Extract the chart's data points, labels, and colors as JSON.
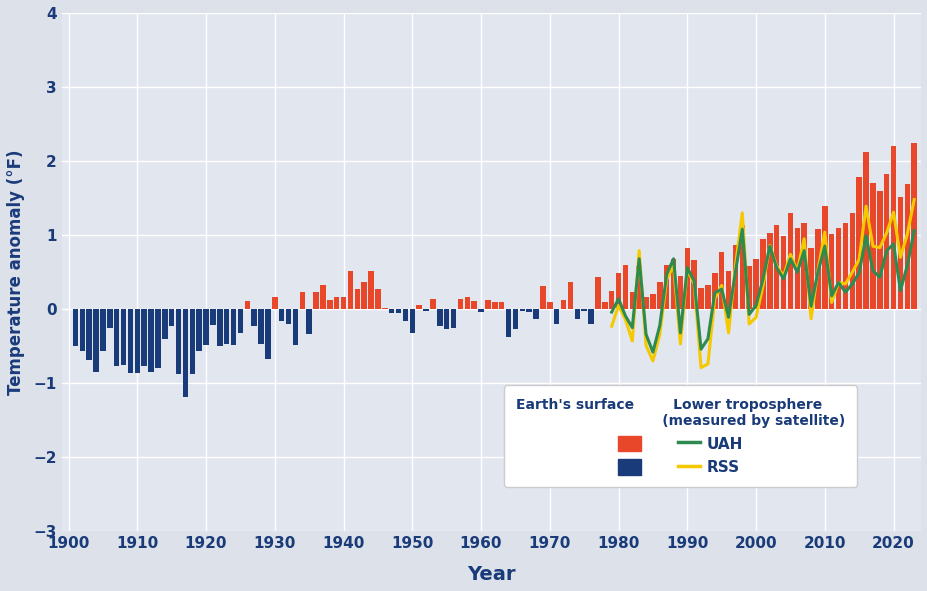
{
  "ylabel": "Temperature anomaly (°F)",
  "xlabel": "Year",
  "bg_color": "#dde1ea",
  "plot_bg_color": "#e2e6ef",
  "ylim": [
    -3,
    4
  ],
  "yticks": [
    -3,
    -2,
    -1,
    0,
    1,
    2,
    3,
    4
  ],
  "xlim": [
    1899,
    2024
  ],
  "bar_color_pos": "#e8472a",
  "bar_color_neg": "#1a3b7a",
  "uah_color": "#2e8b50",
  "rss_color": "#f5c800",
  "surface_years": [
    1901,
    1902,
    1903,
    1904,
    1905,
    1906,
    1907,
    1908,
    1909,
    1910,
    1911,
    1912,
    1913,
    1914,
    1915,
    1916,
    1917,
    1918,
    1919,
    1920,
    1921,
    1922,
    1923,
    1924,
    1925,
    1926,
    1927,
    1928,
    1929,
    1930,
    1931,
    1932,
    1933,
    1934,
    1935,
    1936,
    1937,
    1938,
    1939,
    1940,
    1941,
    1942,
    1943,
    1944,
    1945,
    1946,
    1947,
    1948,
    1949,
    1950,
    1951,
    1952,
    1953,
    1954,
    1955,
    1956,
    1957,
    1958,
    1959,
    1960,
    1961,
    1962,
    1963,
    1964,
    1965,
    1966,
    1967,
    1968,
    1969,
    1970,
    1971,
    1972,
    1973,
    1974,
    1975,
    1976,
    1977,
    1978,
    1979,
    1980,
    1981,
    1982,
    1983,
    1984,
    1985,
    1986,
    1987,
    1988,
    1989,
    1990,
    1991,
    1992,
    1993,
    1994,
    1995,
    1996,
    1997,
    1998,
    1999,
    2000,
    2001,
    2002,
    2003,
    2004,
    2005,
    2006,
    2007,
    2008,
    2009,
    2010,
    2011,
    2012,
    2013,
    2014,
    2015,
    2016,
    2017,
    2018,
    2019,
    2020,
    2021,
    2022,
    2023
  ],
  "surface_vals": [
    -0.5,
    -0.56,
    -0.68,
    -0.85,
    -0.56,
    -0.25,
    -0.77,
    -0.76,
    -0.86,
    -0.86,
    -0.77,
    -0.85,
    -0.79,
    -0.4,
    -0.23,
    -0.88,
    -1.19,
    -0.88,
    -0.56,
    -0.49,
    -0.22,
    -0.5,
    -0.47,
    -0.49,
    -0.32,
    0.11,
    -0.23,
    -0.47,
    -0.67,
    0.16,
    -0.16,
    -0.2,
    -0.49,
    0.23,
    -0.34,
    0.23,
    0.32,
    0.13,
    0.16,
    0.16,
    0.52,
    0.27,
    0.36,
    0.52,
    0.27,
    0.02,
    -0.05,
    -0.05,
    -0.16,
    -0.32,
    0.05,
    -0.02,
    0.14,
    -0.23,
    -0.27,
    -0.25,
    0.14,
    0.16,
    0.11,
    -0.04,
    0.13,
    0.09,
    0.09,
    -0.38,
    -0.27,
    -0.02,
    -0.04,
    -0.13,
    0.31,
    0.09,
    -0.2,
    0.13,
    0.36,
    -0.13,
    -0.02,
    -0.2,
    0.43,
    0.09,
    0.25,
    0.49,
    0.59,
    0.23,
    0.58,
    0.16,
    0.2,
    0.36,
    0.59,
    0.68,
    0.45,
    0.83,
    0.67,
    0.29,
    0.32,
    0.49,
    0.77,
    0.52,
    0.86,
    1.13,
    0.58,
    0.68,
    0.95,
    1.03,
    1.13,
    0.99,
    1.3,
    1.1,
    1.17,
    0.83,
    1.08,
    1.39,
    1.01,
    1.1,
    1.17,
    1.3,
    1.78,
    2.12,
    1.71,
    1.6,
    1.82,
    2.2,
    1.51,
    1.69,
    2.25
  ],
  "uah_years": [
    1979,
    1980,
    1981,
    1982,
    1983,
    1984,
    1985,
    1986,
    1987,
    1988,
    1989,
    1990,
    1991,
    1992,
    1993,
    1994,
    1995,
    1996,
    1997,
    1998,
    1999,
    2000,
    2001,
    2002,
    2003,
    2004,
    2005,
    2006,
    2007,
    2008,
    2009,
    2010,
    2011,
    2012,
    2013,
    2014,
    2015,
    2016,
    2017,
    2018,
    2019,
    2020,
    2021,
    2022,
    2023
  ],
  "uah_vals": [
    -0.04,
    0.14,
    -0.09,
    -0.25,
    0.68,
    -0.34,
    -0.58,
    -0.22,
    0.47,
    0.68,
    -0.32,
    0.56,
    0.38,
    -0.54,
    -0.4,
    0.22,
    0.27,
    -0.11,
    0.5,
    1.08,
    -0.07,
    0.05,
    0.4,
    0.85,
    0.56,
    0.41,
    0.68,
    0.5,
    0.79,
    0.04,
    0.5,
    0.85,
    0.18,
    0.36,
    0.23,
    0.34,
    0.49,
    0.99,
    0.52,
    0.43,
    0.79,
    0.88,
    0.25,
    0.59,
    1.06
  ],
  "rss_years": [
    1979,
    1980,
    1981,
    1982,
    1983,
    1984,
    1985,
    1986,
    1987,
    1988,
    1989,
    1990,
    1991,
    1992,
    1993,
    1994,
    1995,
    1996,
    1997,
    1998,
    1999,
    2000,
    2001,
    2002,
    2003,
    2004,
    2005,
    2006,
    2007,
    2008,
    2009,
    2010,
    2011,
    2012,
    2013,
    2014,
    2015,
    2016,
    2017,
    2018,
    2019,
    2020,
    2021,
    2022,
    2023
  ],
  "rss_vals": [
    -0.23,
    0.05,
    -0.14,
    -0.43,
    0.79,
    -0.49,
    -0.7,
    -0.34,
    0.4,
    0.59,
    -0.47,
    0.54,
    0.34,
    -0.79,
    -0.74,
    0.14,
    0.32,
    -0.32,
    0.58,
    1.3,
    -0.2,
    -0.11,
    0.31,
    0.86,
    0.58,
    0.45,
    0.74,
    0.52,
    0.95,
    -0.13,
    0.52,
    1.04,
    0.09,
    0.36,
    0.34,
    0.5,
    0.67,
    1.39,
    0.85,
    0.83,
    1.03,
    1.31,
    0.7,
    1.01,
    1.48
  ],
  "legend_text_color": "#1a3b7a",
  "axis_text_color": "#1a3b7a",
  "grid_color": "#ffffff"
}
